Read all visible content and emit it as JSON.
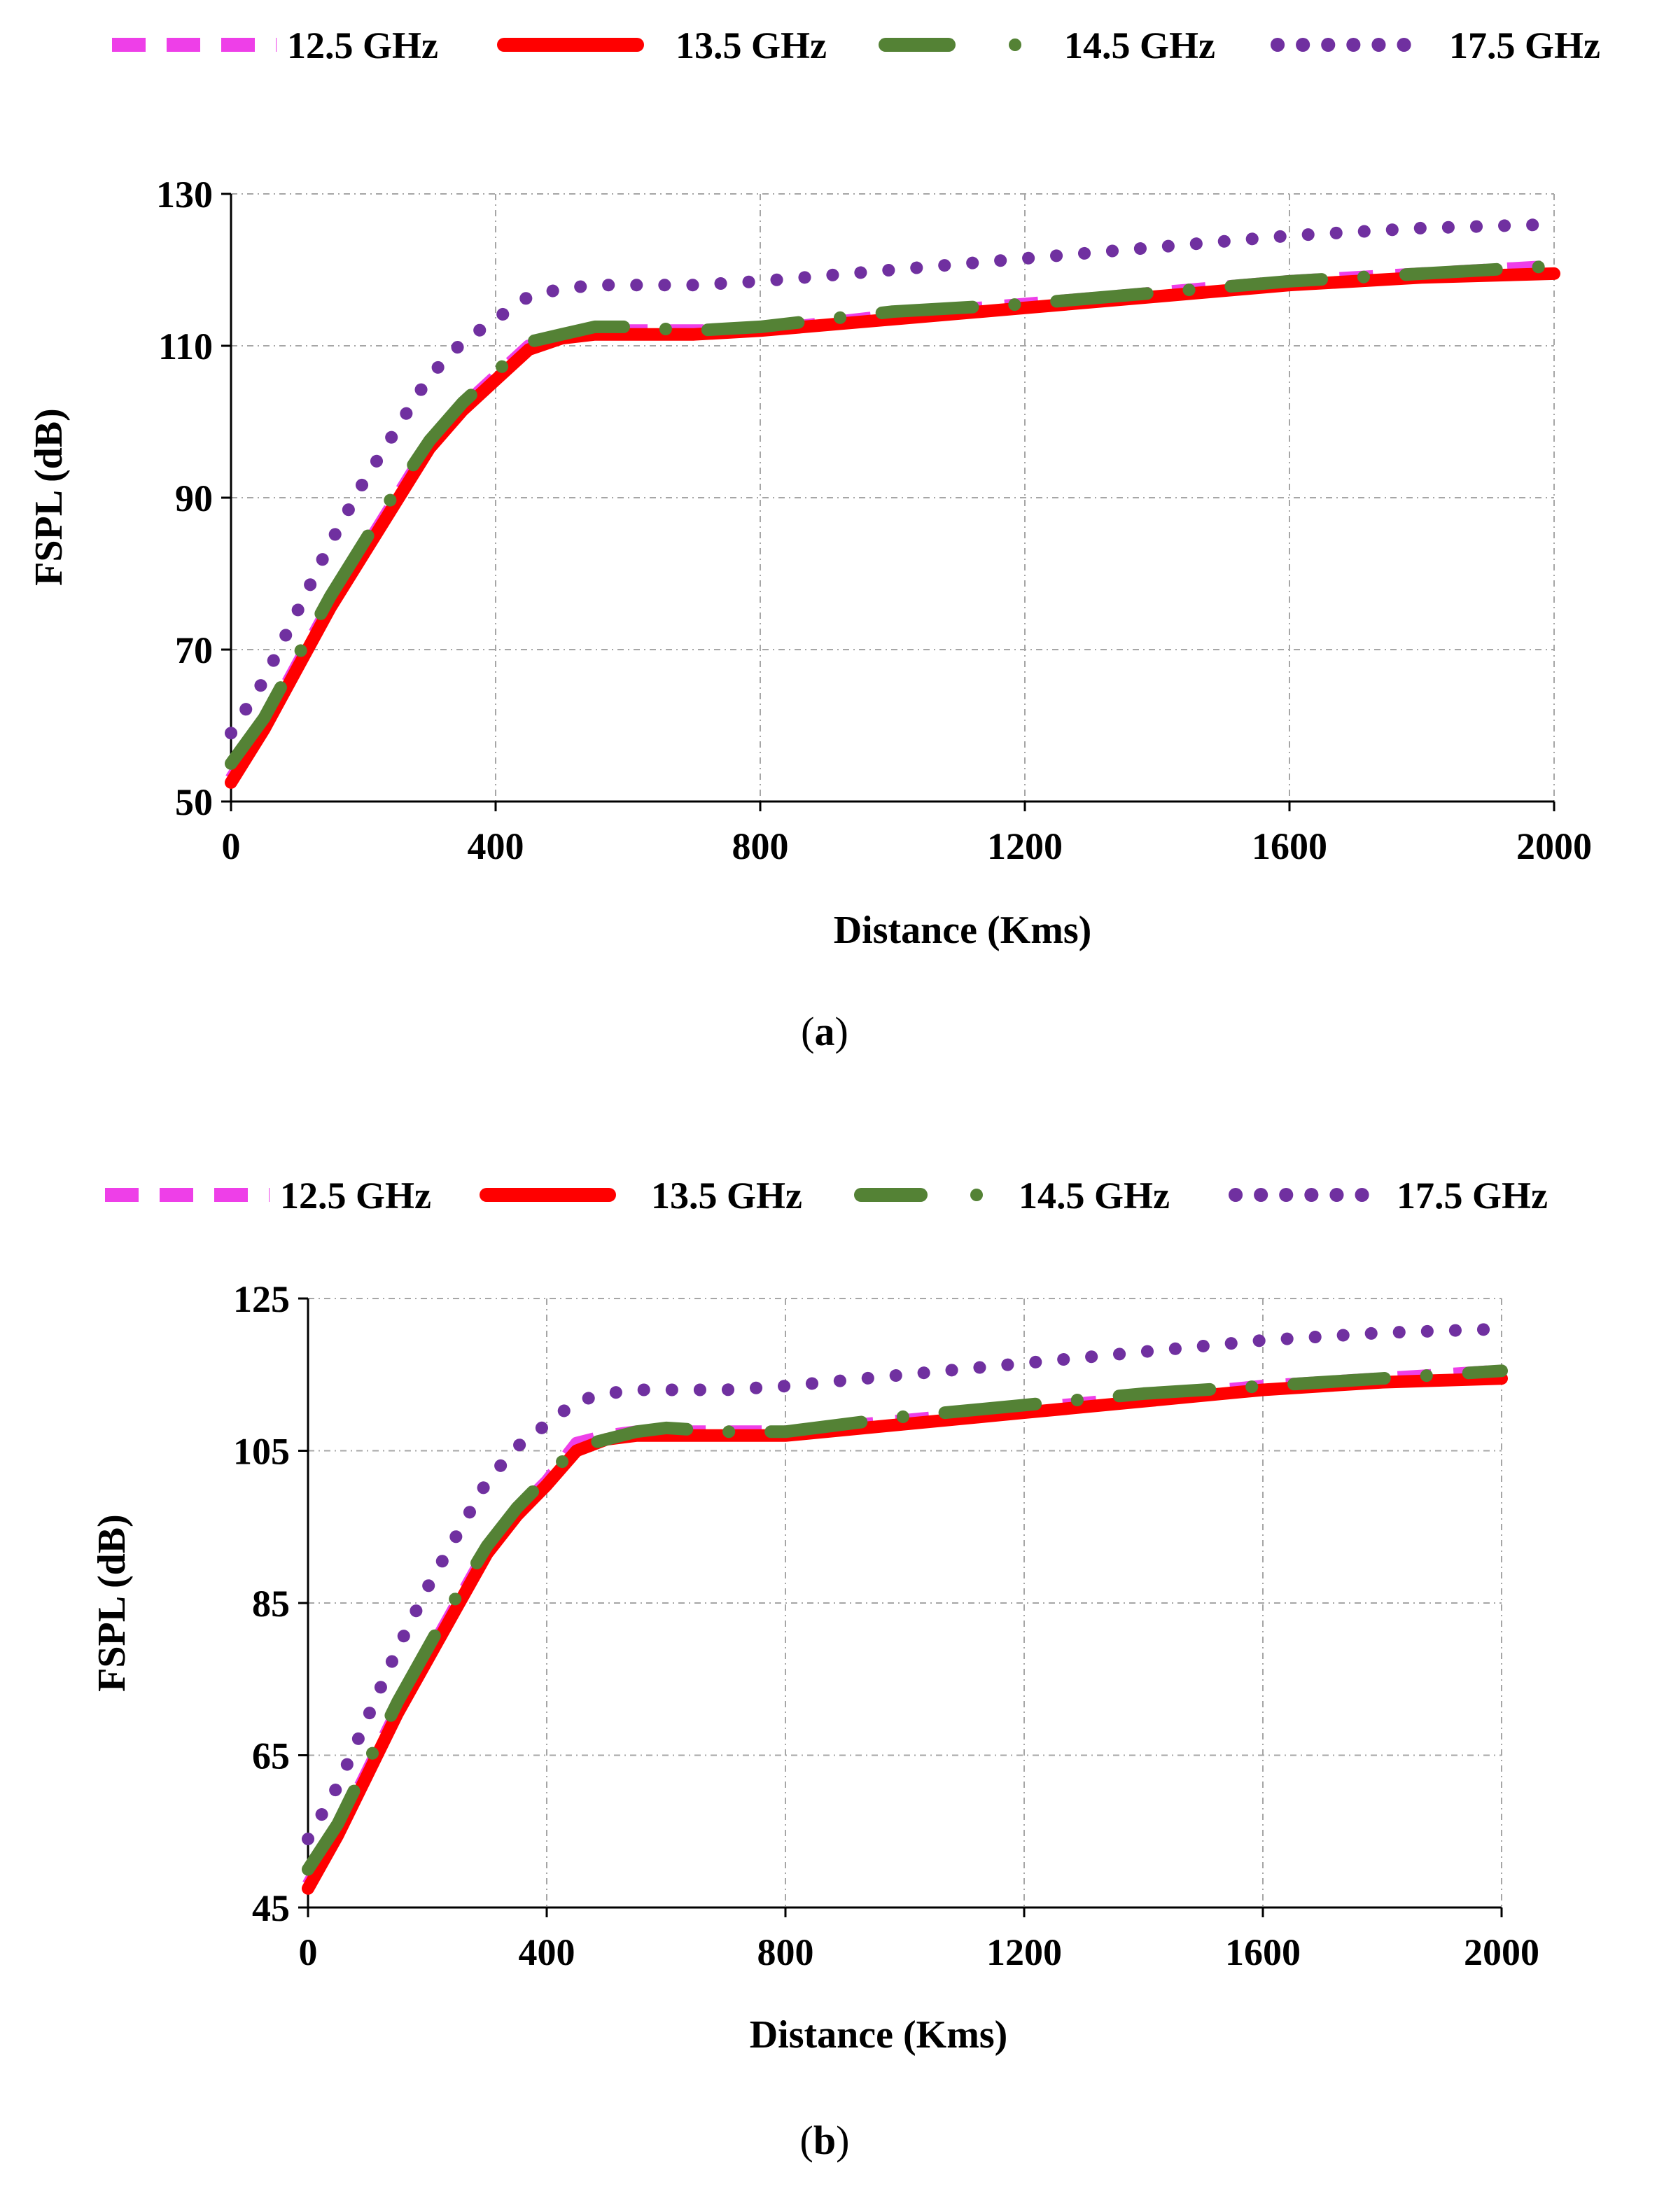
{
  "figure": {
    "colors": {
      "s12_5": "#ee3fe8",
      "s13_5": "#ff0000",
      "s14_5": "#548235",
      "s17_5": "#7030a0",
      "grid": "#a6a6a6",
      "axis": "#000000"
    }
  },
  "chart_data": [
    {
      "type": "line",
      "panel_label": "a",
      "xlabel": "Distance (Kms)",
      "ylabel": "FSPL (dB)",
      "xlim": [
        0,
        2000
      ],
      "ylim": [
        50,
        130
      ],
      "xticks": [
        0,
        400,
        800,
        1200,
        1600,
        2000
      ],
      "yticks": [
        50,
        70,
        90,
        110,
        130
      ],
      "x": [
        0,
        50,
        100,
        150,
        200,
        250,
        300,
        350,
        400,
        450,
        500,
        550,
        600,
        700,
        800,
        1000,
        1200,
        1400,
        1600,
        1800,
        2000
      ],
      "series": [
        {
          "name": "12.5 GHz",
          "style": "dash",
          "values": [
            53,
            60,
            68,
            76,
            83,
            90,
            97,
            102,
            106,
            110,
            111,
            112,
            112,
            112,
            112,
            114,
            115.5,
            117,
            118.5,
            119.5,
            120.5
          ]
        },
        {
          "name": "13.5 GHz",
          "style": "solid",
          "values": [
            52.5,
            59.5,
            67.5,
            75.5,
            82.5,
            89.5,
            96.5,
            101.5,
            105.5,
            109.5,
            111,
            111.5,
            111.5,
            111.5,
            112,
            113.5,
            115,
            116.5,
            118,
            119,
            119.5
          ]
        },
        {
          "name": "14.5 GHz",
          "style": "dash-dot",
          "values": [
            55,
            61,
            69,
            77,
            84,
            91,
            97.5,
            102.5,
            106.5,
            110.5,
            111.5,
            112.5,
            112.5,
            112,
            112.5,
            114.5,
            115.5,
            117,
            118.5,
            119.5,
            120.5
          ]
        },
        {
          "name": "17.5 GHz",
          "style": "dotted",
          "values": [
            59,
            66,
            75,
            84,
            92,
            99,
            106,
            110.5,
            113.5,
            116.5,
            117.5,
            118,
            118,
            118,
            118.5,
            120,
            121.5,
            123,
            124.5,
            125.5,
            126
          ]
        }
      ]
    },
    {
      "type": "line",
      "panel_label": "b",
      "xlabel": "Distance (Kms)",
      "ylabel": "FSPL (dB)",
      "xlim": [
        0,
        2000
      ],
      "ylim": [
        45,
        125
      ],
      "xticks": [
        0,
        400,
        800,
        1200,
        1600,
        2000
      ],
      "yticks": [
        45,
        65,
        85,
        105,
        125
      ],
      "x": [
        0,
        50,
        100,
        150,
        200,
        250,
        300,
        350,
        400,
        450,
        500,
        550,
        600,
        700,
        800,
        1000,
        1200,
        1400,
        1600,
        1800,
        2000
      ],
      "series": [
        {
          "name": "12.5 GHz",
          "style": "dash",
          "values": [
            48,
            55,
            63,
            71,
            78,
            85,
            92,
            97,
            101,
            106,
            107,
            107.5,
            107.5,
            107.5,
            107.5,
            109,
            110.5,
            112,
            113.5,
            114.5,
            115.5
          ]
        },
        {
          "name": "13.5 GHz",
          "style": "solid",
          "values": [
            47.5,
            54.5,
            62.5,
            70.5,
            77.5,
            84.5,
            91.5,
            96.5,
            100.5,
            105,
            106.5,
            107,
            107,
            107,
            107,
            108.5,
            110,
            111.5,
            113,
            114,
            114.5
          ]
        },
        {
          "name": "14.5 GHz",
          "style": "dash-dot",
          "values": [
            50,
            56,
            64,
            72,
            79,
            86,
            92.5,
            97.5,
            101.5,
            105.5,
            106.5,
            107.5,
            108,
            107.5,
            107.5,
            109.5,
            111,
            112.5,
            113.5,
            114.5,
            115.5
          ]
        },
        {
          "name": "17.5 GHz",
          "style": "dotted",
          "values": [
            54,
            61,
            70,
            79,
            87,
            94,
            101,
            105.5,
            108.5,
            111.5,
            112.5,
            113,
            113,
            113,
            113.5,
            115,
            116.5,
            118,
            119.5,
            120.5,
            121
          ]
        }
      ]
    }
  ]
}
